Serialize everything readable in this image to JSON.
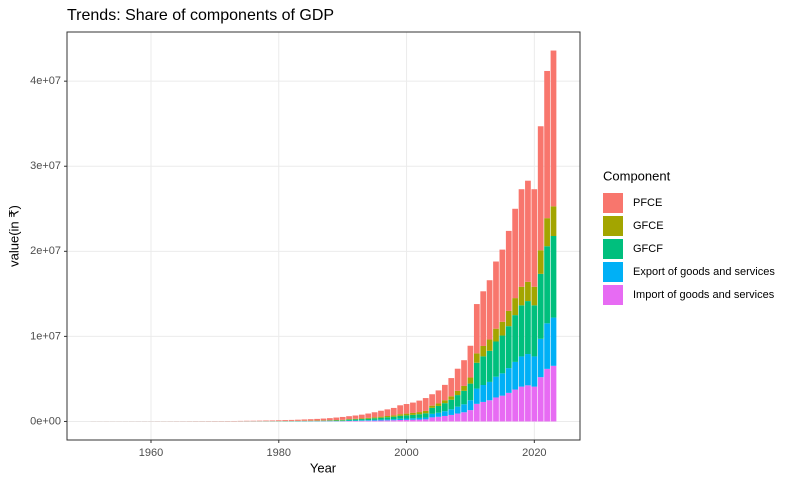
{
  "chart_data": {
    "type": "stacked-bar",
    "title": "Trends: Share of components of GDP",
    "x_label": "Year",
    "y_label": "value(in ₹)",
    "legend_title": "Component",
    "x": [
      1951,
      1952,
      1953,
      1954,
      1955,
      1956,
      1957,
      1958,
      1959,
      1960,
      1961,
      1962,
      1963,
      1964,
      1965,
      1966,
      1967,
      1968,
      1969,
      1970,
      1971,
      1972,
      1973,
      1974,
      1975,
      1976,
      1977,
      1978,
      1979,
      1980,
      1981,
      1982,
      1983,
      1984,
      1985,
      1986,
      1987,
      1988,
      1989,
      1990,
      1991,
      1992,
      1993,
      1994,
      1995,
      1996,
      1997,
      1998,
      1999,
      2000,
      2001,
      2002,
      2003,
      2004,
      2005,
      2006,
      2007,
      2008,
      2009,
      2010,
      2011,
      2012,
      2013,
      2014,
      2015,
      2016,
      2017,
      2018,
      2019,
      2020,
      2021,
      2022,
      2023
    ],
    "series": [
      {
        "name": "PFCE",
        "color": "#F8766D",
        "values": [
          6400,
          6400,
          7040,
          7040,
          7040,
          7680,
          8320,
          8960,
          9600,
          10240,
          11520,
          12160,
          13440,
          15360,
          16640,
          18560,
          21760,
          23040,
          24960,
          26880,
          28800,
          31360,
          35200,
          42240,
          50560,
          53120,
          60800,
          69120,
          75520,
          87040,
          102400,
          115200,
          131200,
          150400,
          169600,
          192000,
          217600,
          249600,
          294400,
          339200,
          341000,
          385000,
          440000,
          511500,
          594000,
          693000,
          781000,
          874500,
          1045000,
          1127500,
          1221000,
          1347500,
          1512500,
          1344000,
          1533000,
          1806000,
          2142000,
          2604000,
          3024000,
          3738000,
          5796000,
          6426000,
          6972000,
          7896000,
          8484000,
          9408000,
          10500000,
          11466000,
          11886000,
          11466000,
          14574000,
          17304000,
          18312000
        ]
      },
      {
        "name": "GFCE",
        "color": "#A3A500",
        "values": [
          1000,
          1000,
          1100,
          1100,
          1100,
          1200,
          1300,
          1400,
          1500,
          1600,
          1800,
          1900,
          2100,
          2400,
          2600,
          2900,
          3400,
          3600,
          3900,
          4200,
          4500,
          4900,
          5500,
          6600,
          7900,
          8300,
          9500,
          10800,
          11800,
          13600,
          16000,
          18000,
          20500,
          23500,
          26500,
          30000,
          34000,
          39000,
          46000,
          53000,
          62000,
          70000,
          80000,
          93000,
          108000,
          126000,
          142000,
          159000,
          190000,
          205000,
          222000,
          245000,
          275000,
          256000,
          292000,
          344000,
          408000,
          496000,
          576000,
          712000,
          1104000,
          1224000,
          1328000,
          1504000,
          1616000,
          1792000,
          2000000,
          2184000,
          2264000,
          2184000,
          2776000,
          3296000,
          3488000
        ]
      },
      {
        "name": "GFCF",
        "color": "#00BF7D",
        "values": [
          1400,
          1400,
          1540,
          1540,
          1540,
          1680,
          1820,
          1960,
          2100,
          2240,
          2520,
          2660,
          2940,
          3360,
          3640,
          4060,
          4760,
          5040,
          5460,
          5880,
          6300,
          6860,
          7700,
          9240,
          11060,
          11620,
          13300,
          15120,
          16520,
          19040,
          22400,
          25200,
          28700,
          32900,
          37100,
          42000,
          47600,
          54600,
          64400,
          74200,
          111600,
          126000,
          144000,
          167400,
          194400,
          226800,
          255600,
          286200,
          342000,
          369000,
          399600,
          441000,
          495000,
          704000,
          803000,
          946000,
          1122000,
          1364000,
          1584000,
          1958000,
          3036000,
          3366000,
          3652000,
          4136000,
          4444000,
          4928000,
          5500000,
          6006000,
          6226000,
          6006000,
          7634000,
          9064000,
          9592000
        ]
      },
      {
        "name": "Export of goods and services",
        "color": "#00B0F6",
        "values": [
          600,
          600,
          660,
          660,
          660,
          720,
          780,
          840,
          900,
          960,
          1080,
          1140,
          1260,
          1440,
          1560,
          1740,
          2040,
          2160,
          2340,
          2520,
          2700,
          2940,
          3300,
          3960,
          4740,
          4980,
          5700,
          6480,
          7080,
          8160,
          9600,
          10800,
          12300,
          14100,
          15900,
          18000,
          20400,
          23400,
          27600,
          31800,
          49600,
          56000,
          64000,
          74400,
          86400,
          100800,
          113600,
          127200,
          152000,
          164000,
          177600,
          196000,
          220000,
          416000,
          474500,
          559000,
          663000,
          806000,
          936000,
          1157000,
          1794000,
          1989000,
          2158000,
          2444000,
          2626000,
          2912000,
          3250000,
          3549000,
          3679000,
          3549000,
          4511000,
          5356000,
          5668000
        ]
      },
      {
        "name": "Import of goods and services",
        "color": "#E76BF3",
        "values": [
          600,
          600,
          660,
          660,
          660,
          720,
          780,
          840,
          900,
          960,
          1080,
          1140,
          1260,
          1440,
          1560,
          1740,
          2040,
          2160,
          2340,
          2520,
          2700,
          2940,
          3300,
          3960,
          4740,
          4980,
          5700,
          6480,
          7080,
          8160,
          9600,
          10800,
          12300,
          14100,
          15900,
          18000,
          20400,
          23400,
          27600,
          31800,
          55800,
          63000,
          72000,
          83700,
          97200,
          113400,
          127800,
          143100,
          171000,
          184500,
          199800,
          220500,
          247500,
          480000,
          547500,
          645000,
          765000,
          930000,
          1080000,
          1335000,
          2070000,
          2295000,
          2490000,
          2820000,
          3030000,
          3360000,
          3750000,
          4095000,
          4245000,
          4095000,
          5205000,
          6180000,
          6540000
        ]
      }
    ],
    "xlim": [
      1946.85,
      2027.15
    ],
    "xticks": [
      1960,
      1980,
      2000,
      2020
    ],
    "ylim": [
      -2180000,
      45780000
    ],
    "yticks": [
      {
        "value": 0,
        "label": "0e+00"
      },
      {
        "value": 10000000,
        "label": "1e+07"
      },
      {
        "value": 20000000,
        "label": "2e+07"
      },
      {
        "value": 30000000,
        "label": "3e+07"
      },
      {
        "value": 40000000,
        "label": "4e+07"
      }
    ],
    "grid": true
  }
}
